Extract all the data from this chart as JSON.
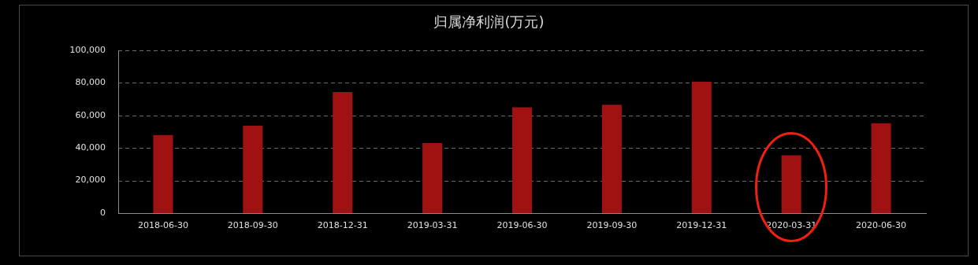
{
  "chart_data": {
    "type": "bar",
    "title": "归属净利润(万元)",
    "categories": [
      "2018-06-30",
      "2018-09-30",
      "2018-12-31",
      "2019-03-31",
      "2019-06-30",
      "2019-09-30",
      "2019-12-31",
      "2020-03-31",
      "2020-06-30"
    ],
    "values": [
      48000,
      53700,
      74400,
      43000,
      65000,
      66500,
      80700,
      35500,
      55200
    ],
    "color": "#a01212",
    "ylim": [
      0,
      100000
    ],
    "yticks": [
      0,
      {
        "value": 20000,
        "label": "20,000"
      },
      {
        "value": 40000,
        "label": "40,000"
      },
      {
        "value": 60000,
        "label": "60,000"
      },
      {
        "value": 80000,
        "label": "80,000"
      },
      {
        "value": 100000,
        "label": "100,000"
      }
    ],
    "grid": "y"
  }
}
